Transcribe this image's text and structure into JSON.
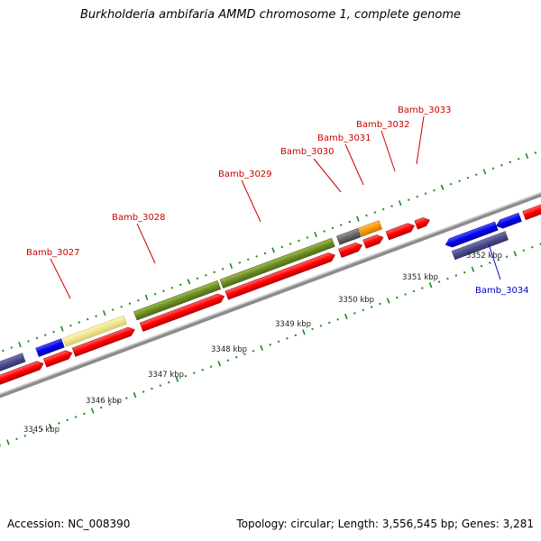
{
  "header": {
    "title": "Burkholderia ambifaria AMMD chromosome 1, complete genome"
  },
  "footer": {
    "accession": "Accession: NC_008390",
    "topology": "Topology: circular; Length: 3,556,545 bp; Genes: 3,281"
  },
  "colors": {
    "backbone": "#8c8c8c",
    "tick": "#1a8a1a",
    "label_red": "#cc0000",
    "label_blue": "#0000cc",
    "gene_red": "#ff0000",
    "gene_blue": "#0000ee",
    "gene_olive": "#6b8e23",
    "gene_yellow": "#f0e68c",
    "gene_gray": "#666666",
    "gene_orange": "#ff9900",
    "gene_navy": "#4b4b8c"
  },
  "scale_labels": [
    "3345 kbp",
    "3346 kbp",
    "3347 kbp",
    "3348 kbp",
    "3349 kbp",
    "3350 kbp",
    "3351 kbp",
    "3352 kbp"
  ],
  "gene_labels": [
    "Bamb_3027",
    "Bamb_3028",
    "Bamb_3029",
    "Bamb_3030",
    "Bamb_3031",
    "Bamb_3032",
    "Bamb_3033",
    "Bamb_3034"
  ]
}
